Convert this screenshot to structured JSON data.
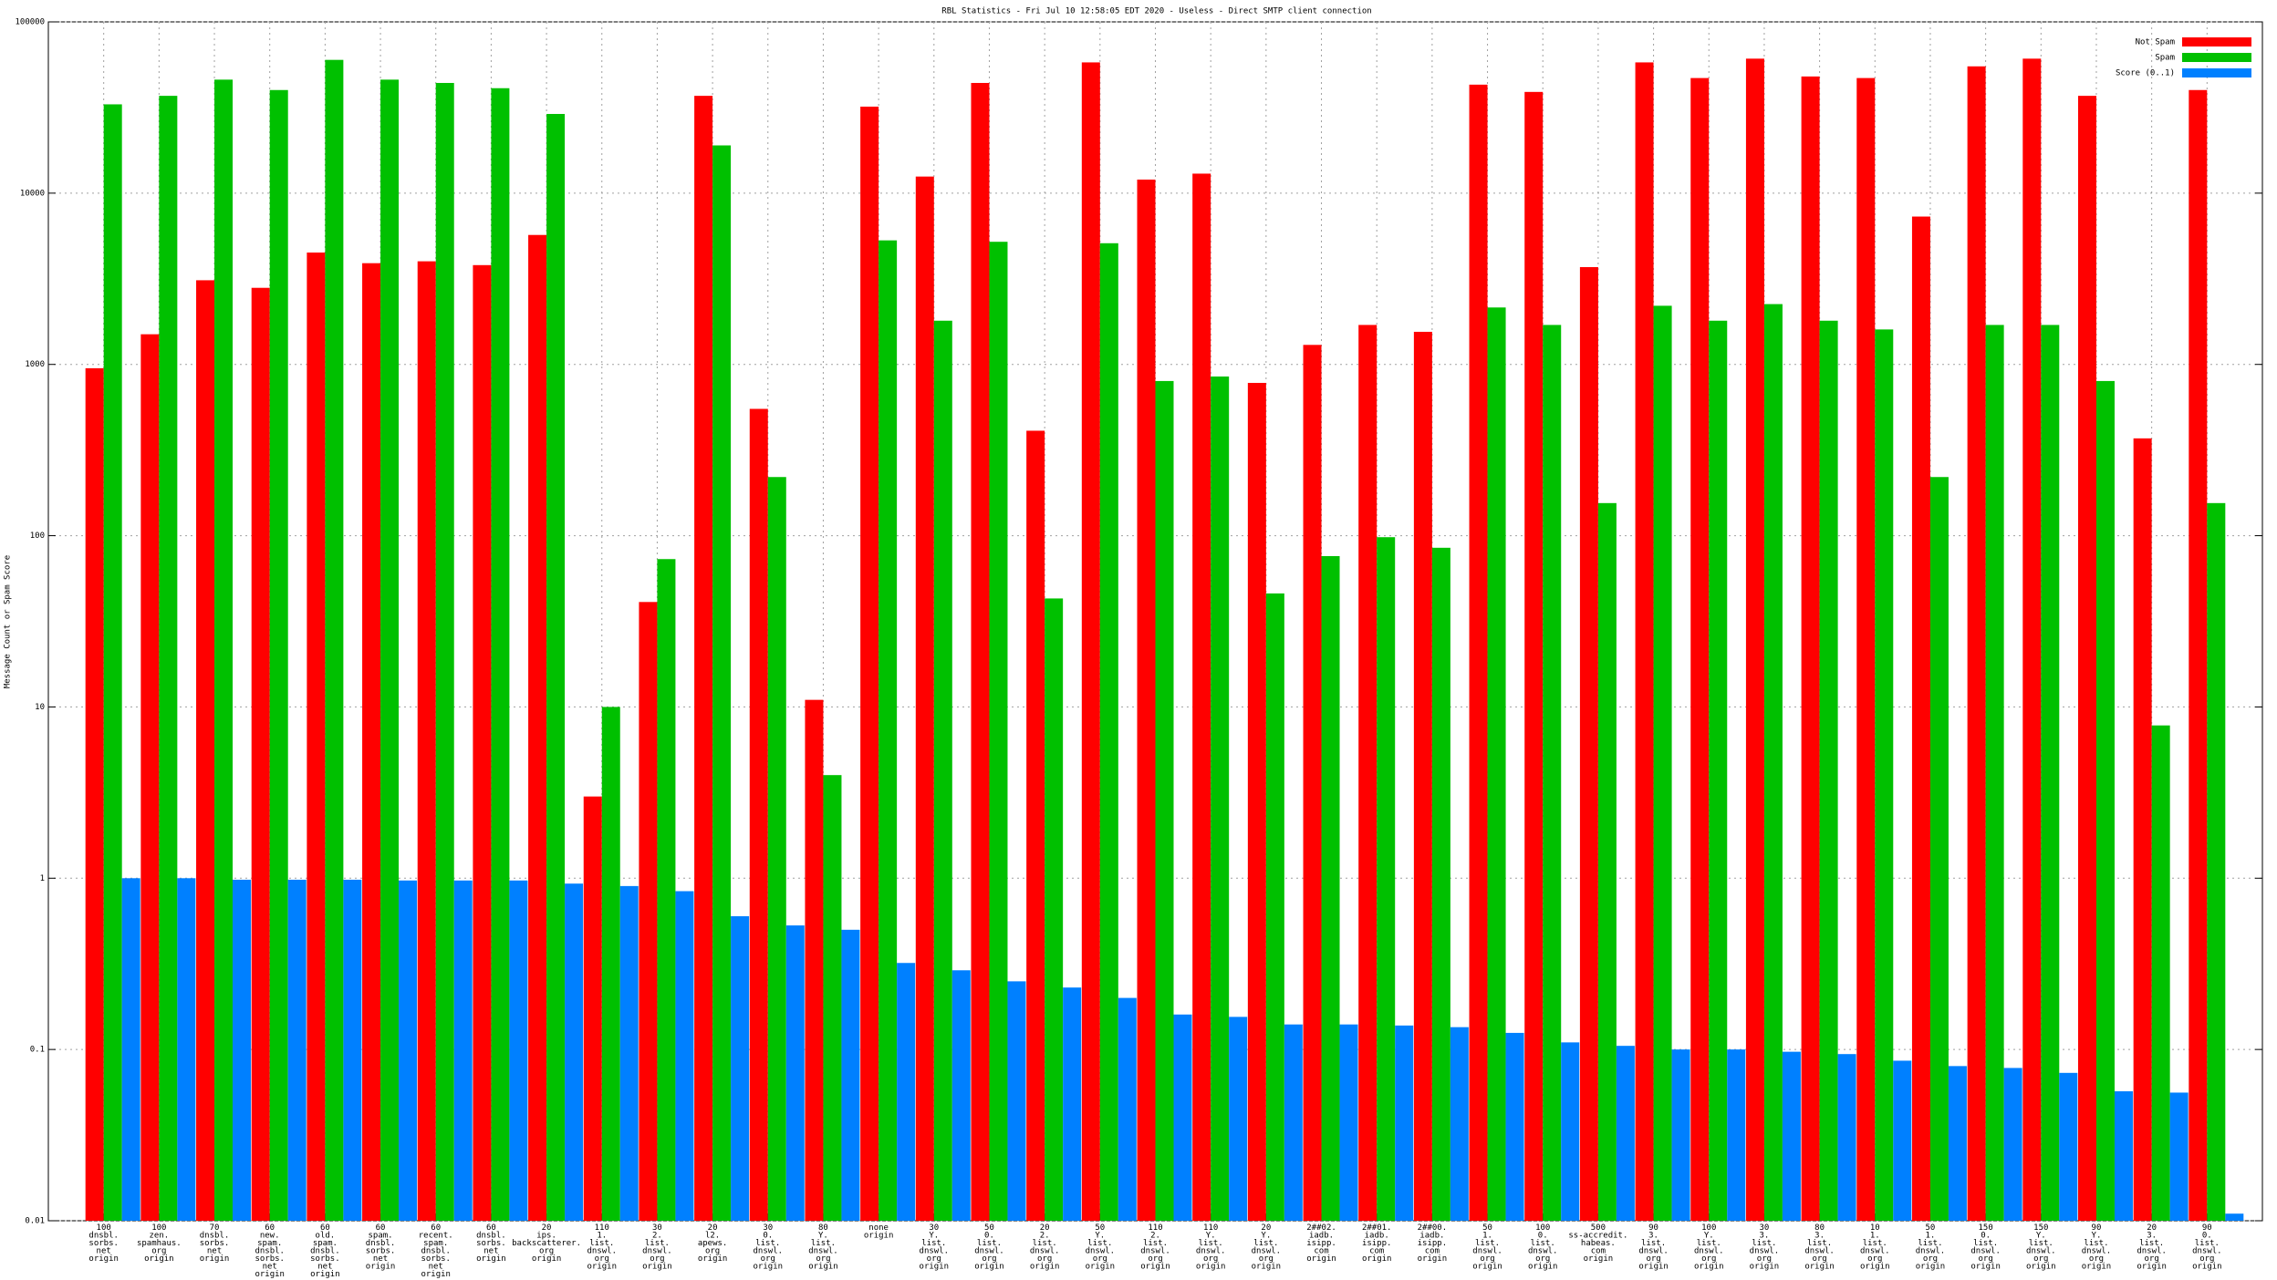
{
  "chart_data": {
    "type": "bar",
    "title": "RBL Statistics - Fri Jul 10 12:58:05 EDT 2020 - Useless - Direct SMTP client connection",
    "y_label": "Message Count or Spam Score",
    "log_y": true,
    "grid": true,
    "legend": "top-right",
    "ylim": [
      0.01,
      100000
    ],
    "yticks": [
      0.01,
      0.1,
      1,
      10,
      100,
      1000,
      10000,
      100000
    ],
    "categories": [
      [
        "100",
        "dnsbl.",
        "sorbs.",
        "net",
        "origin"
      ],
      [
        "100",
        "zen.",
        "spamhaus.",
        "org",
        "origin"
      ],
      [
        "70",
        "dnsbl.",
        "sorbs.",
        "net",
        "origin"
      ],
      [
        "60",
        "new.",
        "spam.",
        "dnsbl.",
        "sorbs.",
        "net",
        "origin"
      ],
      [
        "60",
        "old.",
        "spam.",
        "dnsbl.",
        "sorbs.",
        "net",
        "origin"
      ],
      [
        "60",
        "spam.",
        "dnsbl.",
        "sorbs.",
        "net",
        "origin"
      ],
      [
        "60",
        "recent.",
        "spam.",
        "dnsbl.",
        "sorbs.",
        "net",
        "origin"
      ],
      [
        "60",
        "dnsbl.",
        "sorbs.",
        "net",
        "origin"
      ],
      [
        "20",
        "ips.",
        "backscatterer.",
        "org",
        "origin"
      ],
      [
        "110",
        "1.",
        "list.",
        "dnswl.",
        "org",
        "origin"
      ],
      [
        "30",
        "2.",
        "list.",
        "dnswl.",
        "org",
        "origin"
      ],
      [
        "20",
        "l2.",
        "apews.",
        "org",
        "origin"
      ],
      [
        "30",
        "0.",
        "list.",
        "dnswl.",
        "org",
        "origin"
      ],
      [
        "80",
        "Y.",
        "list.",
        "dnswl.",
        "org",
        "origin"
      ],
      [
        "none",
        "origin"
      ],
      [
        "30",
        "Y.",
        "list.",
        "dnswl.",
        "org",
        "origin"
      ],
      [
        "50",
        "0.",
        "list.",
        "dnswl.",
        "org",
        "origin"
      ],
      [
        "20",
        "2.",
        "list.",
        "dnswl.",
        "org",
        "origin"
      ],
      [
        "50",
        "Y.",
        "list.",
        "dnswl.",
        "org",
        "origin"
      ],
      [
        "110",
        "2.",
        "list.",
        "dnswl.",
        "org",
        "origin"
      ],
      [
        "110",
        "Y.",
        "list.",
        "dnswl.",
        "org",
        "origin"
      ],
      [
        "20",
        "Y.",
        "list.",
        "dnswl.",
        "org",
        "origin"
      ],
      [
        "2##02.",
        "iadb.",
        "isipp.",
        "com",
        "origin"
      ],
      [
        "2##01.",
        "iadb.",
        "isipp.",
        "com",
        "origin"
      ],
      [
        "2##00.",
        "iadb.",
        "isipp.",
        "com",
        "origin"
      ],
      [
        "50",
        "1.",
        "list.",
        "dnswl.",
        "org",
        "origin"
      ],
      [
        "100",
        "0.",
        "list.",
        "dnswl.",
        "org",
        "origin"
      ],
      [
        "500",
        "ss-accredit.",
        "habeas.",
        "com",
        "origin"
      ],
      [
        "90",
        "3.",
        "list.",
        "dnswl.",
        "org",
        "origin"
      ],
      [
        "100",
        "Y.",
        "list.",
        "dnswl.",
        "org",
        "origin"
      ],
      [
        "30",
        "3.",
        "list.",
        "dnswl.",
        "org",
        "origin"
      ],
      [
        "80",
        "3.",
        "list.",
        "dnswl.",
        "org",
        "origin"
      ],
      [
        "10",
        "1.",
        "list.",
        "dnswl.",
        "org",
        "origin"
      ],
      [
        "50",
        "1.",
        "list.",
        "dnswl.",
        "org",
        "origin"
      ],
      [
        "150",
        "0.",
        "list.",
        "dnswl.",
        "org",
        "origin"
      ],
      [
        "150",
        "Y.",
        "list.",
        "dnswl.",
        "org",
        "origin"
      ],
      [
        "90",
        "Y.",
        "list.",
        "dnswl.",
        "org",
        "origin"
      ],
      [
        "20",
        "3.",
        "list.",
        "dnswl.",
        "org",
        "origin"
      ],
      [
        "90",
        "0.",
        "list.",
        "dnswl.",
        "org",
        "origin"
      ]
    ],
    "series": [
      {
        "name": "Not Spam",
        "color": "#ff0000",
        "values": [
          950,
          1500,
          3100,
          2800,
          4500,
          3900,
          4000,
          3800,
          5700,
          3,
          41,
          37000,
          550,
          11,
          32000,
          12500,
          44000,
          410,
          58000,
          12000,
          13000,
          780,
          1300,
          1700,
          1550,
          43000,
          39000,
          3700,
          58000,
          47000,
          61000,
          48000,
          47000,
          7300,
          55000,
          61000,
          37000,
          370,
          40000
        ]
      },
      {
        "name": "Spam",
        "color": "#00c000",
        "values": [
          33000,
          37000,
          46000,
          40000,
          60000,
          46000,
          44000,
          41000,
          29000,
          10,
          73,
          19000,
          220,
          4,
          5300,
          1800,
          5200,
          43,
          5100,
          800,
          850,
          46,
          76,
          98,
          85,
          2150,
          1700,
          155,
          2200,
          1800,
          2250,
          1800,
          1600,
          220,
          1700,
          1700,
          800,
          7.8,
          155
        ]
      },
      {
        "name": "Score (0..1)",
        "color": "#0080ff",
        "values": [
          1,
          1,
          0.98,
          0.98,
          0.98,
          0.97,
          0.97,
          0.97,
          0.93,
          0.9,
          0.84,
          0.6,
          0.53,
          0.5,
          0.32,
          0.29,
          0.25,
          0.23,
          0.2,
          0.16,
          0.155,
          0.14,
          0.14,
          0.138,
          0.135,
          0.125,
          0.11,
          0.105,
          0.1,
          0.1,
          0.097,
          0.094,
          0.086,
          0.08,
          0.078,
          0.073,
          0.057,
          0.056,
          0.011
        ]
      }
    ]
  }
}
